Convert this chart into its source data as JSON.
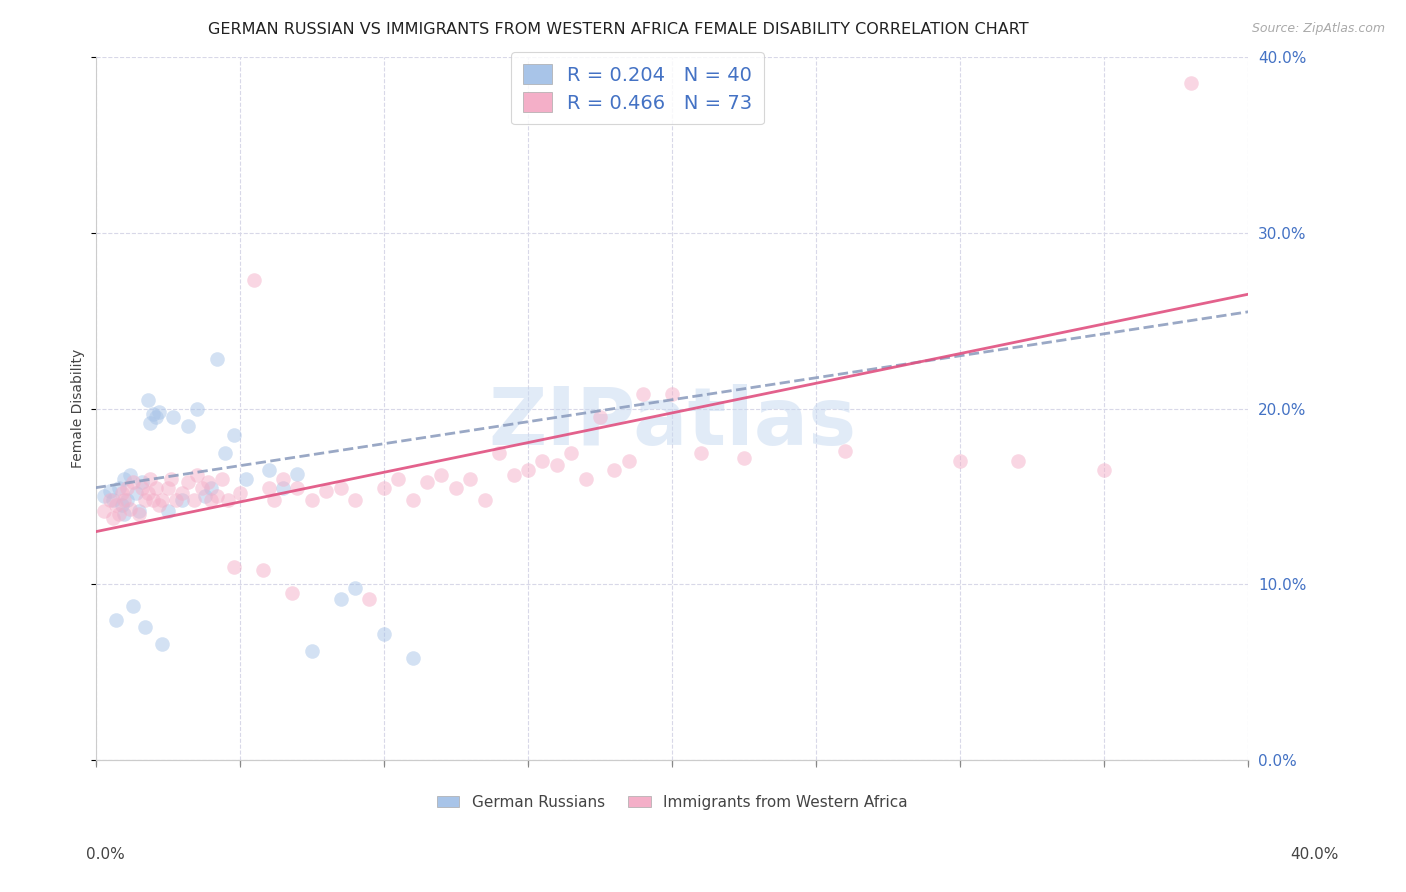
{
  "title": "GERMAN RUSSIAN VS IMMIGRANTS FROM WESTERN AFRICA FEMALE DISABILITY CORRELATION CHART",
  "source": "Source: ZipAtlas.com",
  "ylabel": "Female Disability",
  "xlim": [
    0.0,
    0.4
  ],
  "ylim": [
    0.0,
    0.4
  ],
  "y_ticks": [
    0.0,
    0.1,
    0.2,
    0.3,
    0.4
  ],
  "x_ticks": [
    0.0,
    0.05,
    0.1,
    0.15,
    0.2,
    0.25,
    0.3,
    0.35,
    0.4
  ],
  "y_tick_labels_right": [
    "0.0%",
    "10.0%",
    "20.0%",
    "30.0%",
    "40.0%"
  ],
  "x_tick_label_left": "0.0%",
  "x_tick_label_right": "40.0%",
  "legend_blue_R": "0.204",
  "legend_blue_N": "40",
  "legend_pink_R": "0.466",
  "legend_pink_N": "73",
  "blue_scatter_color": "#a8c4e8",
  "blue_line_color": "#4472c4",
  "pink_scatter_color": "#f4afc8",
  "pink_line_color": "#e05080",
  "watermark_text": "ZIPatlas",
  "watermark_color": "#c5d8f0",
  "grid_color": "#d8d8e8",
  "background_color": "#ffffff",
  "title_fontsize": 11.5,
  "tick_fontsize": 11,
  "legend_fontsize": 14,
  "scatter_size": 110,
  "scatter_alpha": 0.5,
  "right_axis_color": "#4472c4",
  "blue_scatter_x": [
    0.003,
    0.005,
    0.006,
    0.007,
    0.008,
    0.009,
    0.01,
    0.01,
    0.011,
    0.012,
    0.013,
    0.014,
    0.015,
    0.016,
    0.017,
    0.018,
    0.019,
    0.02,
    0.021,
    0.022,
    0.023,
    0.025,
    0.027,
    0.03,
    0.032,
    0.035,
    0.038,
    0.04,
    0.042,
    0.045,
    0.048,
    0.052,
    0.06,
    0.065,
    0.07,
    0.075,
    0.085,
    0.09,
    0.1,
    0.11
  ],
  "blue_scatter_y": [
    0.15,
    0.153,
    0.148,
    0.08,
    0.155,
    0.145,
    0.14,
    0.16,
    0.148,
    0.162,
    0.088,
    0.152,
    0.142,
    0.158,
    0.076,
    0.205,
    0.192,
    0.197,
    0.195,
    0.198,
    0.066,
    0.142,
    0.195,
    0.148,
    0.19,
    0.2,
    0.15,
    0.155,
    0.228,
    0.175,
    0.185,
    0.16,
    0.165,
    0.155,
    0.163,
    0.062,
    0.092,
    0.098,
    0.072,
    0.058
  ],
  "pink_scatter_x": [
    0.003,
    0.005,
    0.006,
    0.007,
    0.008,
    0.009,
    0.01,
    0.011,
    0.012,
    0.013,
    0.015,
    0.016,
    0.017,
    0.018,
    0.019,
    0.02,
    0.021,
    0.022,
    0.023,
    0.025,
    0.026,
    0.028,
    0.03,
    0.032,
    0.034,
    0.035,
    0.037,
    0.039,
    0.04,
    0.042,
    0.044,
    0.046,
    0.048,
    0.05,
    0.055,
    0.058,
    0.06,
    0.062,
    0.065,
    0.068,
    0.07,
    0.075,
    0.08,
    0.085,
    0.09,
    0.095,
    0.1,
    0.105,
    0.11,
    0.115,
    0.12,
    0.125,
    0.13,
    0.135,
    0.14,
    0.145,
    0.15,
    0.155,
    0.16,
    0.165,
    0.17,
    0.175,
    0.18,
    0.185,
    0.19,
    0.2,
    0.21,
    0.225,
    0.26,
    0.3,
    0.32,
    0.35,
    0.38
  ],
  "pink_scatter_y": [
    0.142,
    0.148,
    0.138,
    0.145,
    0.14,
    0.152,
    0.148,
    0.155,
    0.143,
    0.158,
    0.14,
    0.155,
    0.148,
    0.152,
    0.16,
    0.148,
    0.155,
    0.145,
    0.148,
    0.155,
    0.16,
    0.148,
    0.152,
    0.158,
    0.148,
    0.162,
    0.155,
    0.158,
    0.148,
    0.15,
    0.16,
    0.148,
    0.11,
    0.152,
    0.273,
    0.108,
    0.155,
    0.148,
    0.16,
    0.095,
    0.155,
    0.148,
    0.153,
    0.155,
    0.148,
    0.092,
    0.155,
    0.16,
    0.148,
    0.158,
    0.162,
    0.155,
    0.16,
    0.148,
    0.175,
    0.162,
    0.165,
    0.17,
    0.168,
    0.175,
    0.16,
    0.195,
    0.165,
    0.17,
    0.208,
    0.208,
    0.175,
    0.172,
    0.176,
    0.17,
    0.17,
    0.165,
    0.385
  ],
  "blue_trend_x": [
    0.0,
    0.4
  ],
  "blue_trend_y_start": 0.155,
  "blue_trend_y_end": 0.255,
  "pink_trend_x": [
    0.0,
    0.4
  ],
  "pink_trend_y_start": 0.13,
  "pink_trend_y_end": 0.265
}
